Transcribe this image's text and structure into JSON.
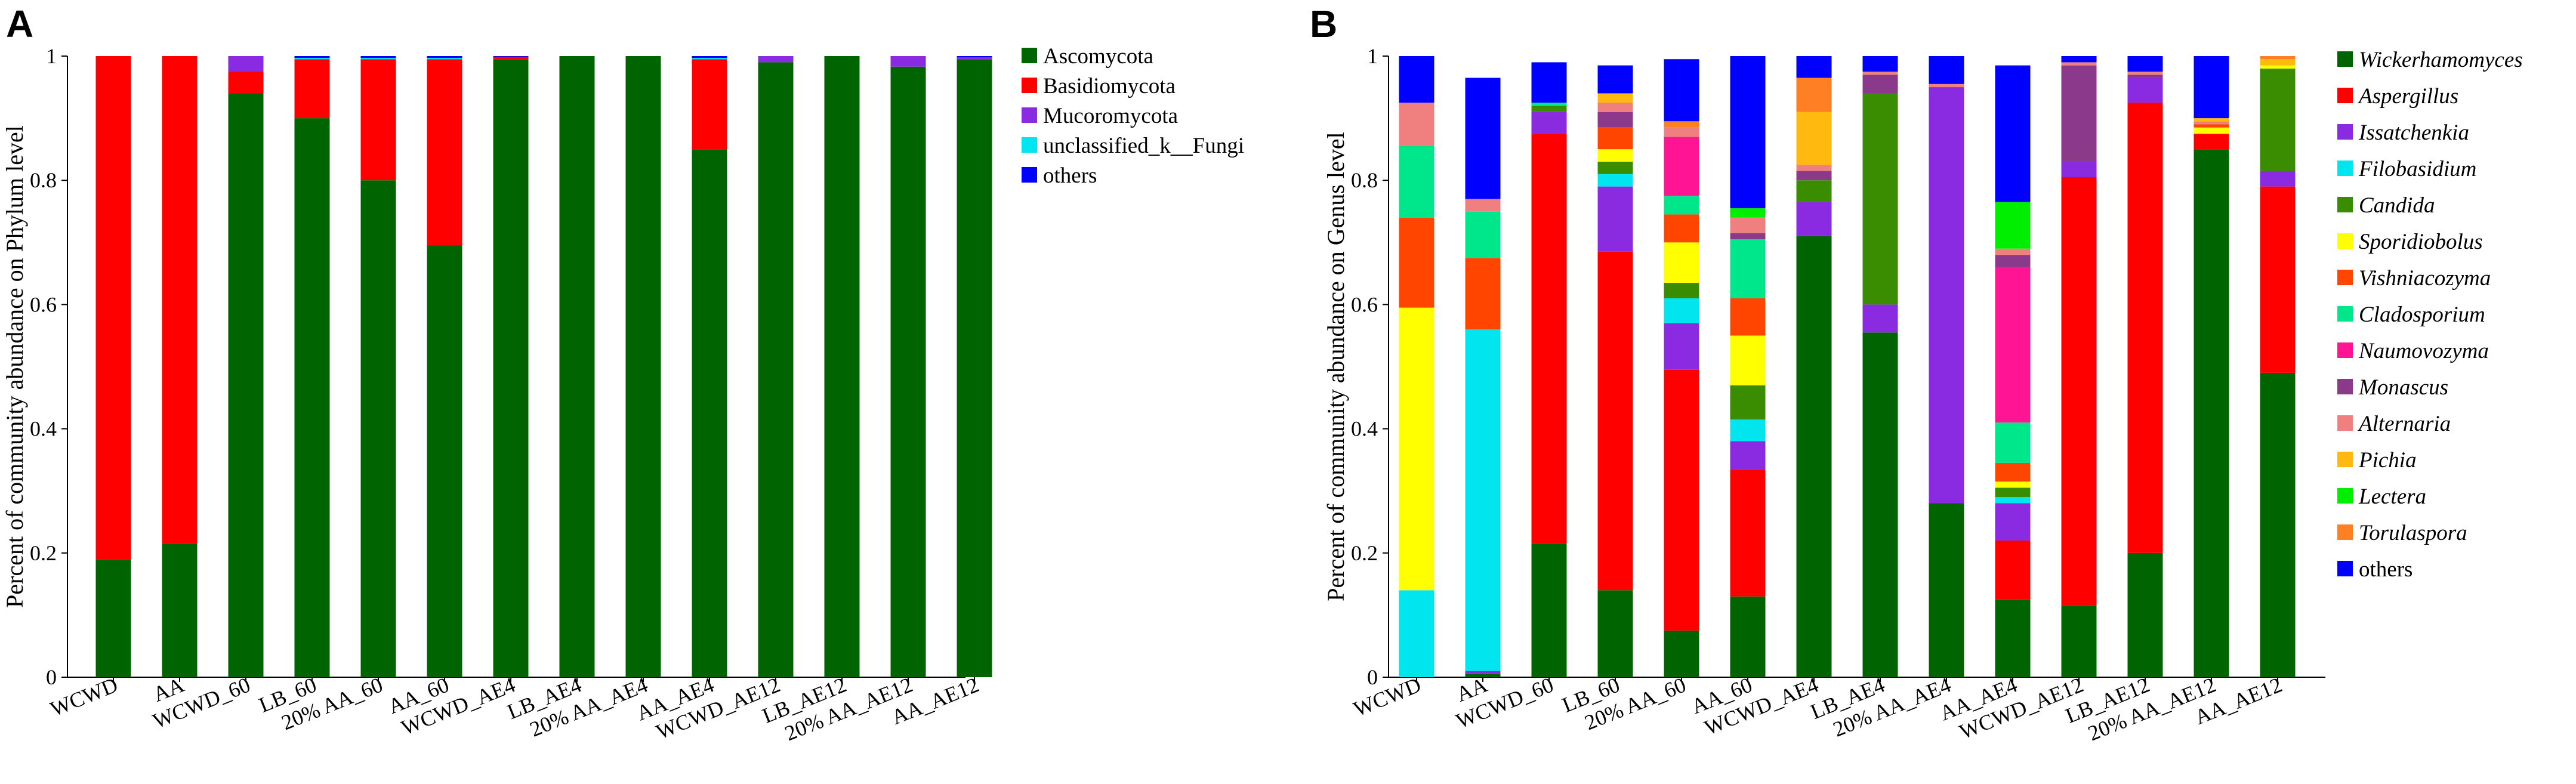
{
  "chart_data": [
    {
      "type": "bar",
      "stacked": true,
      "panel_label": "A",
      "title": "",
      "xlabel": "",
      "ylabel": "Percent of community abundance on Phylum level",
      "ylim": [
        0,
        1
      ],
      "yticks": [
        "0",
        "0.2",
        "0.4",
        "0.6",
        "0.8",
        "1"
      ],
      "categories": [
        "WCWD",
        "AA",
        "WCWD_60",
        "LB_60",
        "20% AA_60",
        "AA_60",
        "WCWD_AE4",
        "LB_AE4",
        "20% AA_AE4",
        "AA_AE4",
        "WCWD_AE12",
        "LB_AE12",
        "20% AA_AE12",
        "AA_AE12"
      ],
      "legend_position": "right",
      "series": [
        {
          "name": "Ascomycota",
          "color": "#006400",
          "values": [
            0.19,
            0.215,
            0.94,
            0.9,
            0.8,
            0.695,
            0.995,
            1.0,
            1.0,
            0.85,
            0.99,
            1.0,
            0.983,
            0.995
          ]
        },
        {
          "name": "Basidiomycota",
          "color": "#ff0000",
          "values": [
            0.81,
            0.785,
            0.035,
            0.095,
            0.195,
            0.3,
            0.004,
            0.0,
            0.0,
            0.145,
            0.0,
            0.0,
            0.0,
            0.0
          ]
        },
        {
          "name": "Mucoromycota",
          "color": "#8a2be2",
          "values": [
            0.0,
            0.0,
            0.025,
            0.0,
            0.0,
            0.0,
            0.0,
            0.0,
            0.0,
            0.0,
            0.01,
            0.0,
            0.017,
            0.003
          ]
        },
        {
          "name": "unclassified_k__Fungi",
          "color": "#00e5ee",
          "values": [
            0.0,
            0.0,
            0.0,
            0.002,
            0.002,
            0.002,
            0.0,
            0.0,
            0.0,
            0.002,
            0.0,
            0.0,
            0.0,
            0.0
          ]
        },
        {
          "name": "others",
          "color": "#0000ff",
          "values": [
            0.0,
            0.0,
            0.0,
            0.003,
            0.003,
            0.003,
            0.001,
            0.0,
            0.0,
            0.003,
            0.0,
            0.0,
            0.0,
            0.002
          ]
        }
      ]
    },
    {
      "type": "bar",
      "stacked": true,
      "panel_label": "B",
      "title": "",
      "xlabel": "",
      "ylabel": "Percent of community abundance on Genus level",
      "ylim": [
        0,
        1
      ],
      "yticks": [
        "0",
        "0.2",
        "0.4",
        "0.6",
        "0.8",
        "1"
      ],
      "categories": [
        "WCWD",
        "AA",
        "WCWD_60",
        "LB_60",
        "20% AA_60",
        "AA_60",
        "WCWD_AE4",
        "LB_AE4",
        "20% AA_AE4",
        "AA_AE4",
        "WCWD_AE12",
        "LB_AE12",
        "20% AA_AE12",
        "AA_AE12"
      ],
      "legend_position": "right",
      "series": [
        {
          "name": "Wickerhamomyces",
          "italic": true,
          "color": "#006400",
          "values": [
            0.0,
            0.005,
            0.215,
            0.14,
            0.075,
            0.13,
            0.71,
            0.555,
            0.28,
            0.125,
            0.115,
            0.2,
            0.85,
            0.49
          ]
        },
        {
          "name": "Aspergillus",
          "italic": true,
          "color": "#ff0000",
          "values": [
            0.0,
            0.0,
            0.66,
            0.545,
            0.42,
            0.205,
            0.0,
            0.0,
            0.0,
            0.095,
            0.69,
            0.725,
            0.025,
            0.3
          ]
        },
        {
          "name": "Issatchenkia",
          "italic": true,
          "color": "#8a2be2",
          "values": [
            0.0,
            0.005,
            0.035,
            0.105,
            0.075,
            0.045,
            0.055,
            0.045,
            0.67,
            0.06,
            0.025,
            0.04,
            0.0,
            0.025
          ]
        },
        {
          "name": "Filobasidium",
          "italic": true,
          "color": "#00e5ee",
          "values": [
            0.14,
            0.55,
            0.0,
            0.02,
            0.04,
            0.035,
            0.0,
            0.0,
            0.0,
            0.01,
            0.0,
            0.0,
            0.0,
            0.0
          ]
        },
        {
          "name": "Candida",
          "italic": true,
          "color": "#3a8c00",
          "values": [
            0.0,
            0.0,
            0.01,
            0.02,
            0.025,
            0.055,
            0.035,
            0.34,
            0.0,
            0.015,
            0.0,
            0.0,
            0.0,
            0.165
          ]
        },
        {
          "name": "Sporidiobolus",
          "italic": true,
          "color": "#ffff00",
          "values": [
            0.455,
            0.0,
            0.0,
            0.02,
            0.065,
            0.08,
            0.0,
            0.0,
            0.0,
            0.01,
            0.0,
            0.0,
            0.01,
            0.005
          ]
        },
        {
          "name": "Vishniacozyma",
          "italic": true,
          "color": "#ff4500",
          "values": [
            0.145,
            0.115,
            0.0,
            0.035,
            0.045,
            0.06,
            0.0,
            0.0,
            0.0,
            0.03,
            0.0,
            0.0,
            0.005,
            0.0
          ]
        },
        {
          "name": "Cladosporium",
          "italic": true,
          "color": "#00e68a",
          "values": [
            0.115,
            0.075,
            0.005,
            0.0,
            0.03,
            0.095,
            0.0,
            0.0,
            0.0,
            0.065,
            0.0,
            0.0,
            0.0,
            0.0
          ]
        },
        {
          "name": "Naumovozyma",
          "italic": true,
          "color": "#ff1493",
          "values": [
            0.0,
            0.0,
            0.0,
            0.0,
            0.095,
            0.0,
            0.0,
            0.0,
            0.0,
            0.25,
            0.0,
            0.0,
            0.0,
            0.0
          ]
        },
        {
          "name": "Monascus",
          "italic": true,
          "color": "#8b3a8b",
          "values": [
            0.0,
            0.0,
            0.0,
            0.025,
            0.0,
            0.01,
            0.015,
            0.03,
            0.0,
            0.02,
            0.155,
            0.005,
            0.0,
            0.0
          ]
        },
        {
          "name": "Alternaria",
          "italic": true,
          "color": "#f08080",
          "values": [
            0.07,
            0.02,
            0.0,
            0.015,
            0.015,
            0.025,
            0.01,
            0.005,
            0.005,
            0.01,
            0.005,
            0.005,
            0.005,
            0.0
          ]
        },
        {
          "name": "Pichia",
          "italic": true,
          "color": "#ffb90f",
          "values": [
            0.0,
            0.0,
            0.0,
            0.015,
            0.0,
            0.0,
            0.085,
            0.0,
            0.0,
            0.0,
            0.0,
            0.0,
            0.005,
            0.01
          ]
        },
        {
          "name": "Lectera",
          "italic": true,
          "color": "#00ee00",
          "values": [
            0.0,
            0.0,
            0.0,
            0.0,
            0.0,
            0.015,
            0.0,
            0.0,
            0.0,
            0.075,
            0.0,
            0.0,
            0.0,
            0.0
          ]
        },
        {
          "name": "Torulaspora",
          "italic": true,
          "color": "#ff7f24",
          "values": [
            0.0,
            0.0,
            0.0,
            0.0,
            0.01,
            0.0,
            0.055,
            0.0,
            0.0,
            0.0,
            0.0,
            0.0,
            0.0,
            0.005
          ]
        },
        {
          "name": "others",
          "italic": false,
          "color": "#0000ff",
          "values": [
            0.075,
            0.195,
            0.065,
            0.045,
            0.1,
            0.245,
            0.035,
            0.025,
            0.045,
            0.22,
            0.01,
            0.025,
            0.1,
            0.0
          ]
        }
      ]
    }
  ]
}
